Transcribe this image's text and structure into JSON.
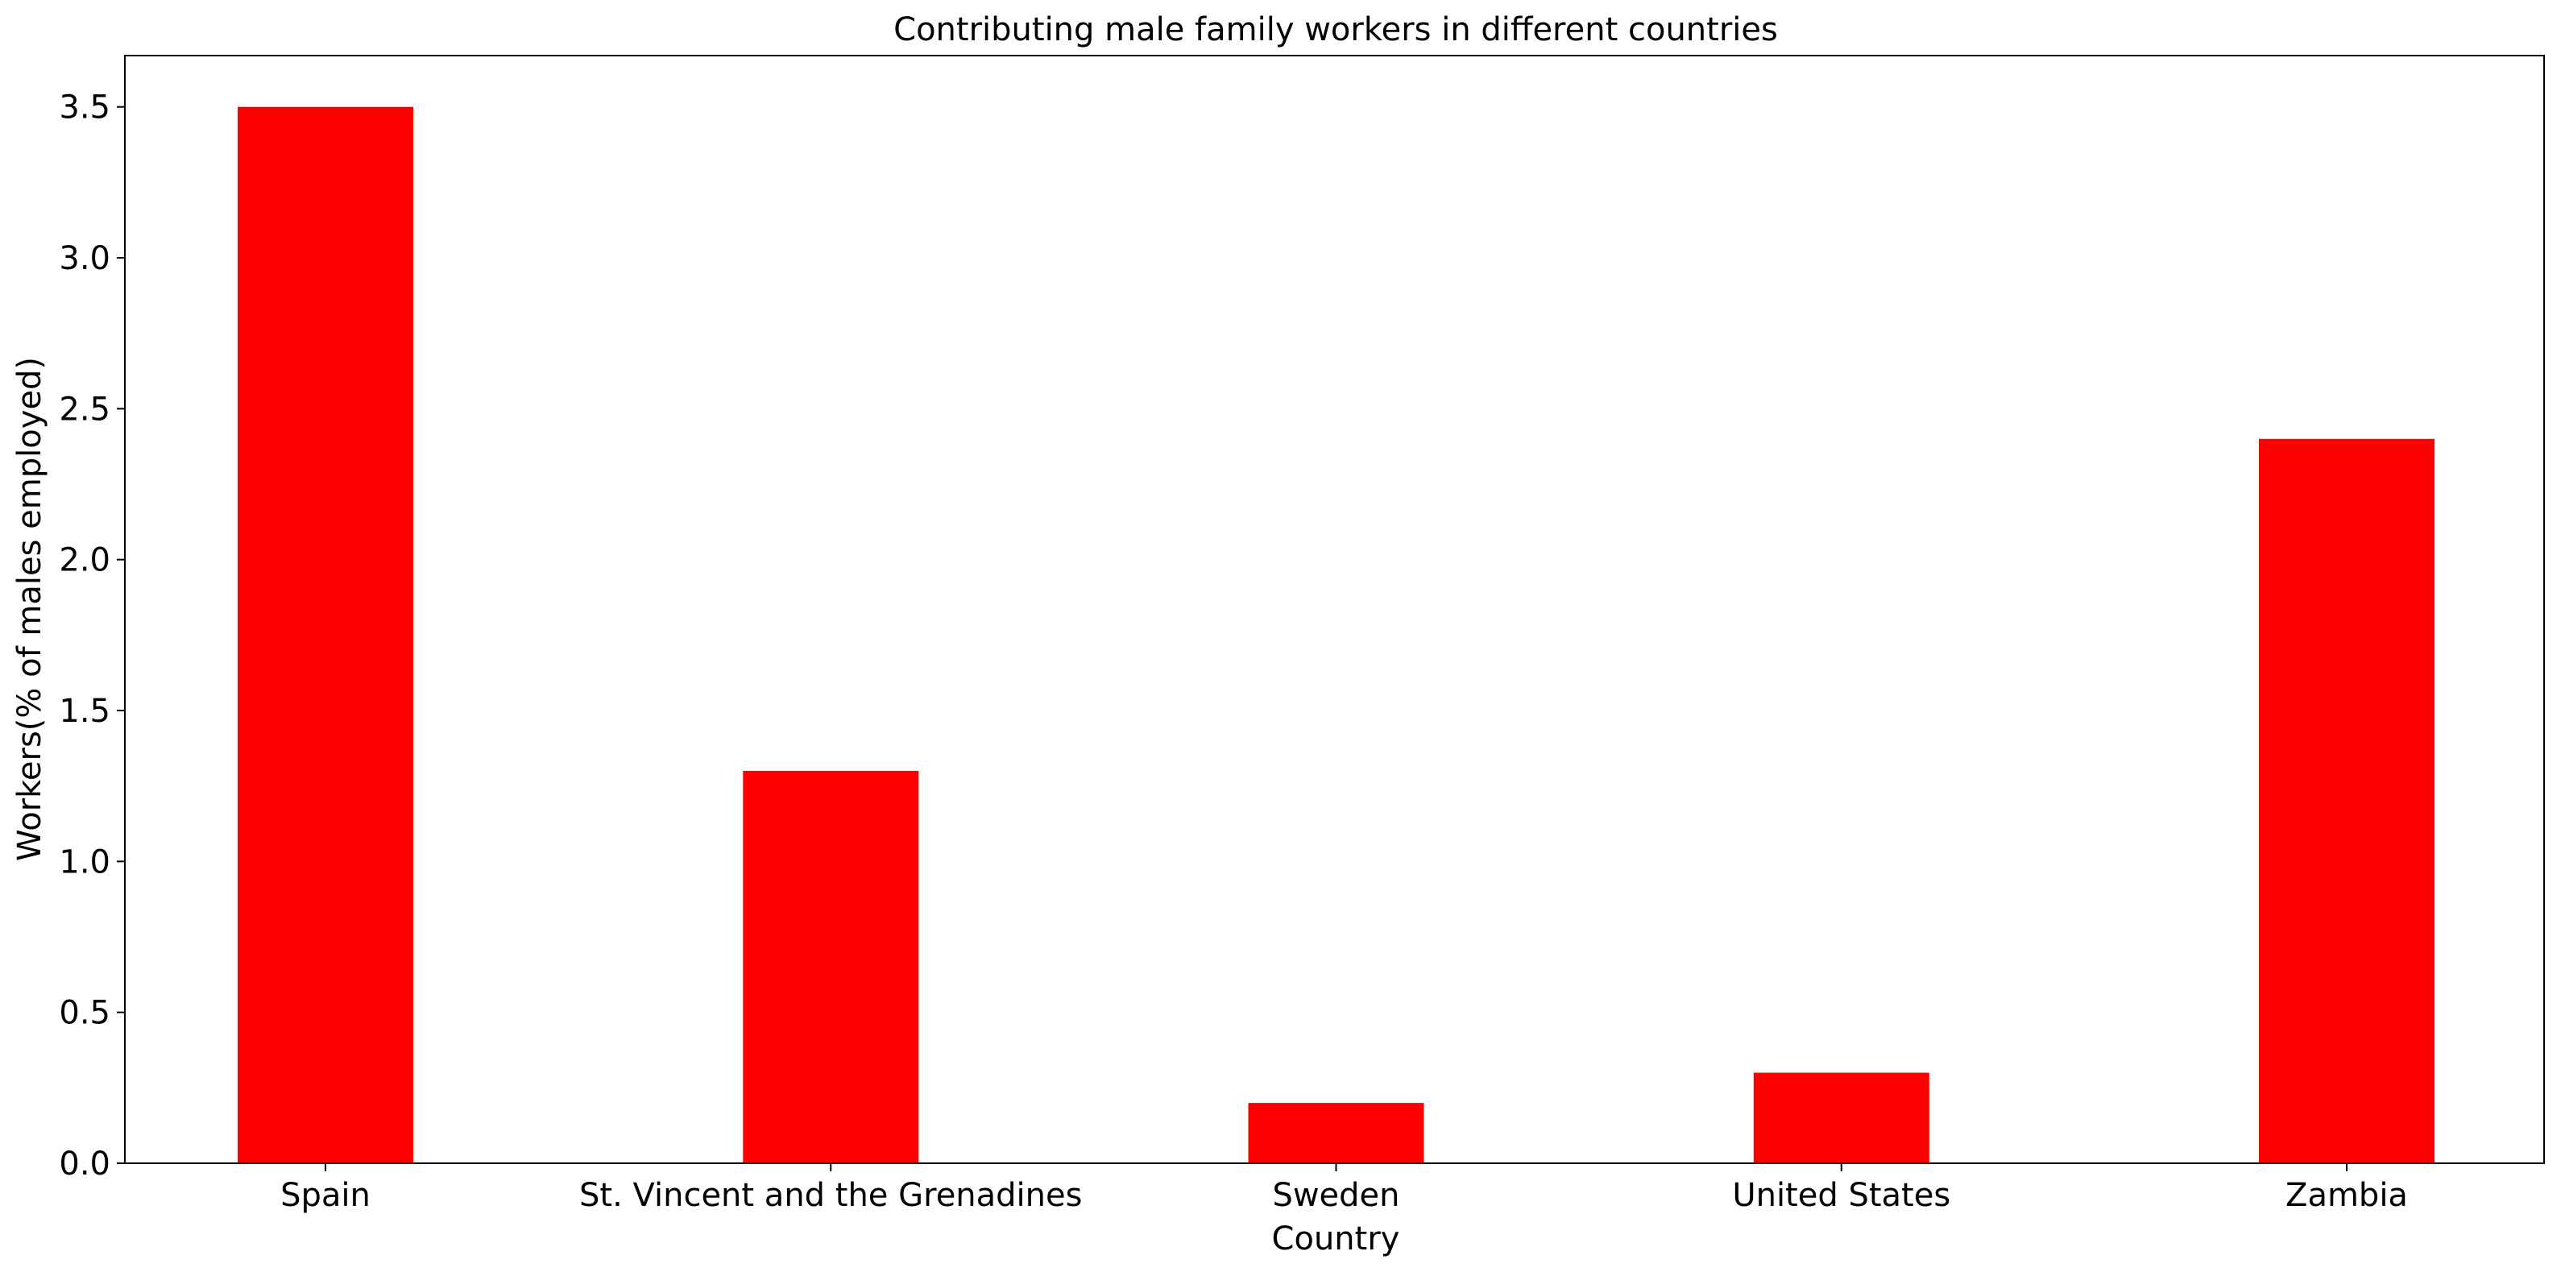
{
  "chart_data": {
    "type": "bar",
    "title": "Contributing male family workers in different countries",
    "xlabel": "Country",
    "ylabel": "Workers(% of males employed)",
    "categories": [
      "Spain",
      "St. Vincent and the Grenadines",
      "Sweden",
      "United States",
      "Zambia"
    ],
    "values": [
      3.5,
      1.3,
      0.2,
      0.3,
      2.4
    ],
    "ylim": [
      0,
      3.67
    ],
    "yticks": [
      0.0,
      0.5,
      1.0,
      1.5,
      2.0,
      2.5,
      3.0,
      3.5
    ],
    "ytick_labels": [
      "0.0",
      "0.5",
      "1.0",
      "1.5",
      "2.0",
      "2.5",
      "3.0",
      "3.5"
    ],
    "bar_color": "#ff0000",
    "grid": false,
    "legend": "none"
  }
}
